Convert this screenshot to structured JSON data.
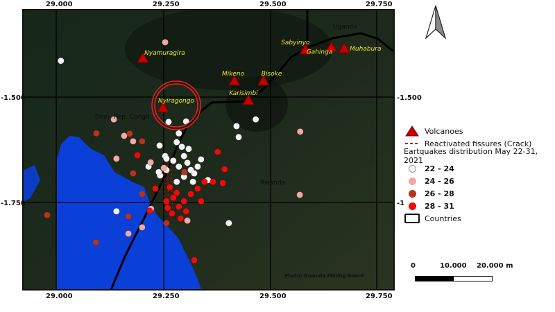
{
  "axes": {
    "x_ticks": [
      "29.000",
      "29.250",
      "29.500",
      "29.750"
    ],
    "y_ticks_left": [
      "-1.500",
      "-1.750"
    ],
    "y_ticks_right": [
      "-1.500",
      "-1"
    ]
  },
  "countries": [
    "Uganda",
    "Dem. Rep. Congo",
    "Rwanda"
  ],
  "volcanoes": [
    {
      "name": "Nyamuragira",
      "lon": 29.203,
      "lat": -1.408
    },
    {
      "name": "Nyiragongo",
      "lon": 29.25,
      "lat": -1.525
    },
    {
      "name": "Mikeno",
      "lon": 29.417,
      "lat": -1.462
    },
    {
      "name": "Bisoke",
      "lon": 29.485,
      "lat": -1.462
    },
    {
      "name": "Karisimbi",
      "lon": 29.45,
      "lat": -1.508
    },
    {
      "name": "Sabyinyo",
      "lon": 29.583,
      "lat": -1.388
    },
    {
      "name": "Gahinga",
      "lon": 29.644,
      "lat": -1.382
    },
    {
      "name": "Muhabura",
      "lon": 29.674,
      "lat": -1.385
    }
  ],
  "earthquakes": [
    [
      29.011,
      -1.414,
      0
    ],
    [
      29.263,
      -1.559,
      0
    ],
    [
      29.304,
      -1.558,
      0
    ],
    [
      29.287,
      -1.586,
      0
    ],
    [
      29.282,
      -1.607,
      0
    ],
    [
      29.294,
      -1.618,
      0
    ],
    [
      29.255,
      -1.64,
      0
    ],
    [
      29.274,
      -1.651,
      0
    ],
    [
      29.287,
      -1.665,
      0
    ],
    [
      29.299,
      -1.64,
      0
    ],
    [
      29.307,
      -1.656,
      0
    ],
    [
      29.315,
      -1.673,
      0
    ],
    [
      29.299,
      -1.689,
      0
    ],
    [
      29.323,
      -1.681,
      0
    ],
    [
      29.331,
      -1.665,
      0
    ],
    [
      29.31,
      -1.623,
      0
    ],
    [
      29.339,
      -1.648,
      0
    ],
    [
      29.282,
      -1.701,
      0
    ],
    [
      29.32,
      -1.701,
      0
    ],
    [
      29.258,
      -1.673,
      0
    ],
    [
      29.243,
      -1.686,
      0
    ],
    [
      29.216,
      -1.665,
      0
    ],
    [
      29.141,
      -1.771,
      0
    ],
    [
      29.404,
      -1.799,
      0
    ],
    [
      29.355,
      -1.697,
      0
    ],
    [
      29.422,
      -1.569,
      0
    ],
    [
      29.427,
      -1.595,
      0
    ],
    [
      29.467,
      -1.553,
      0
    ],
    [
      29.242,
      -1.615,
      0
    ],
    [
      29.258,
      -1.646,
      0
    ],
    [
      29.24,
      -1.678,
      0
    ],
    [
      29.255,
      -1.37,
      1
    ],
    [
      29.135,
      -1.553,
      1
    ],
    [
      29.571,
      -1.582,
      1
    ],
    [
      29.57,
      -1.732,
      1
    ],
    [
      29.159,
      -1.592,
      1
    ],
    [
      29.18,
      -1.605,
      1
    ],
    [
      29.221,
      -1.655,
      1
    ],
    [
      29.141,
      -1.646,
      1
    ],
    [
      29.252,
      -1.668,
      1
    ],
    [
      29.222,
      -1.765,
      1
    ],
    [
      29.201,
      -1.809,
      1
    ],
    [
      29.307,
      -1.793,
      1
    ],
    [
      29.169,
      -1.824,
      1
    ],
    [
      29.094,
      -1.586,
      2
    ],
    [
      29.172,
      -1.587,
      2
    ],
    [
      29.201,
      -1.605,
      2
    ],
    [
      29.18,
      -1.681,
      2
    ],
    [
      29.3,
      -1.678,
      2
    ],
    [
      28.979,
      -1.78,
      2
    ],
    [
      29.093,
      -1.845,
      2
    ],
    [
      29.169,
      -1.783,
      2
    ],
    [
      29.258,
      -1.799,
      2
    ],
    [
      29.201,
      -1.73,
      2
    ],
    [
      29.19,
      -1.638,
      3
    ],
    [
      29.232,
      -1.717,
      3
    ],
    [
      29.266,
      -1.714,
      3
    ],
    [
      29.258,
      -1.747,
      3
    ],
    [
      29.274,
      -1.739,
      3
    ],
    [
      29.287,
      -1.76,
      3
    ],
    [
      29.299,
      -1.747,
      3
    ],
    [
      29.315,
      -1.73,
      3
    ],
    [
      29.331,
      -1.717,
      3
    ],
    [
      29.347,
      -1.701,
      3
    ],
    [
      29.367,
      -1.701,
      3
    ],
    [
      29.378,
      -1.63,
      3
    ],
    [
      29.394,
      -1.671,
      3
    ],
    [
      29.39,
      -1.704,
      3
    ],
    [
      29.323,
      -1.887,
      3
    ],
    [
      29.291,
      -1.788,
      3
    ],
    [
      29.271,
      -1.776,
      3
    ],
    [
      29.339,
      -1.747,
      3
    ],
    [
      29.219,
      -1.77,
      3
    ],
    [
      29.282,
      -1.727,
      3
    ],
    [
      29.304,
      -1.771,
      3
    ],
    [
      29.261,
      -1.763,
      3
    ]
  ],
  "credit": "Photo/ Rwanda Mining Board",
  "legend": {
    "volcanoes": "Volcanoes",
    "fissures": "Reactivated fissures (Crack)",
    "eq_title": "Eartquakes distribution May 22-31, 2021",
    "classes": [
      {
        "label": "22 - 24",
        "color": "#f4f4f4"
      },
      {
        "label": "24 - 26",
        "color": "#f2a8a8"
      },
      {
        "label": "26 - 28",
        "color": "#b8321c"
      },
      {
        "label": "28 - 31",
        "color": "#f00a0a"
      }
    ],
    "countries": "Countries"
  },
  "colors": {
    "volcano": "#c40000",
    "fissure": "#c00000",
    "lake": "#0a3fd8",
    "highlight_circle": "#ff1a1a"
  },
  "scalebar": {
    "labels": [
      "0",
      "10.000",
      "20.000 m"
    ]
  },
  "north_arrow": "north-arrow-icon"
}
